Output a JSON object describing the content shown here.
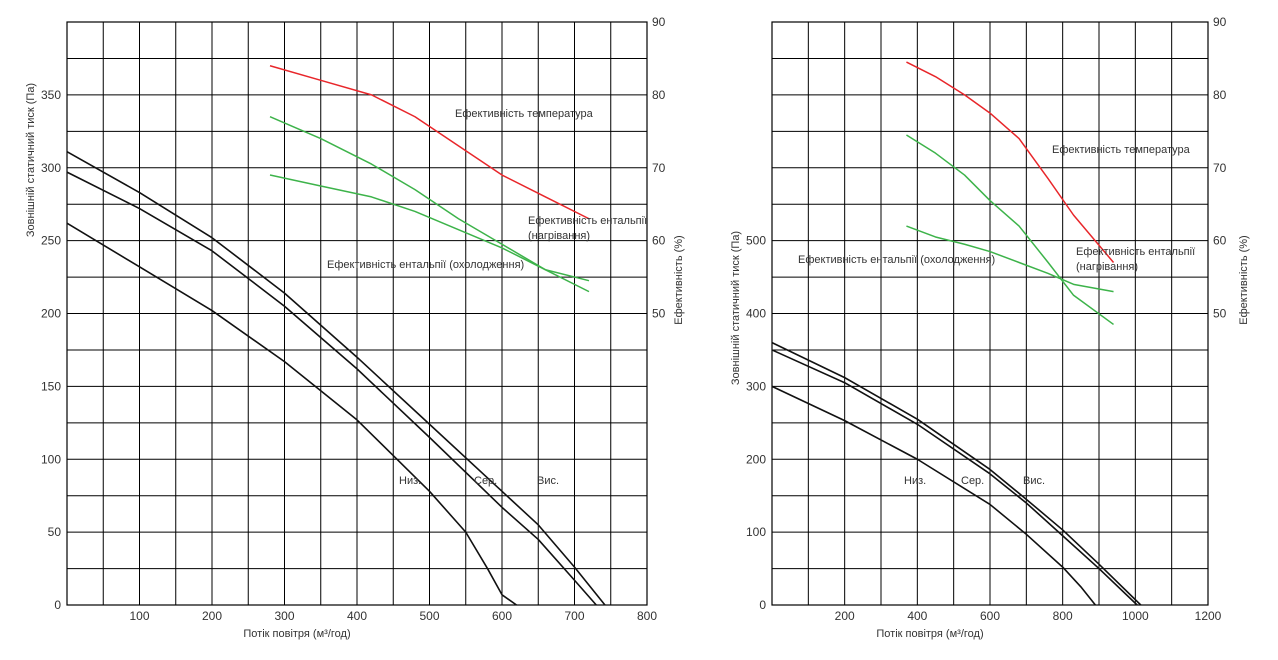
{
  "chart_data": [
    {
      "type": "line",
      "x_label": "Потік повітря (м³/год)",
      "y_left_label": "Зовнішній статичний тиск (Па)",
      "y_right_label": "Ефективність (%)",
      "xlim": [
        0,
        800
      ],
      "ylim_left": [
        0,
        400
      ],
      "ylim_right": [
        10,
        90
      ],
      "x_ticks": [
        "100",
        "200",
        "300",
        "400",
        "500",
        "600",
        "700",
        "800"
      ],
      "y_left_ticks": [
        "0",
        "50",
        "100",
        "150",
        "200",
        "250",
        "300",
        "350"
      ],
      "y_right_ticks": [
        "50",
        "60",
        "70",
        "80",
        "90"
      ],
      "grid": true,
      "pressure_series": [
        {
          "name": "Низ.",
          "x": [
            0,
            100,
            200,
            300,
            400,
            500,
            550,
            580,
            600,
            620
          ],
          "y": [
            262,
            232,
            202,
            167,
            127,
            78,
            50,
            25,
            7,
            0
          ]
        },
        {
          "name": "Сер.",
          "x": [
            0,
            100,
            200,
            300,
            400,
            500,
            600,
            650,
            700,
            730
          ],
          "y": [
            297,
            272,
            243,
            205,
            162,
            115,
            67,
            45,
            17,
            0
          ]
        },
        {
          "name": "Вис.",
          "x": [
            0,
            100,
            200,
            300,
            400,
            500,
            600,
            650,
            700,
            742
          ],
          "y": [
            311,
            283,
            252,
            214,
            170,
            124,
            78,
            55,
            26,
            0
          ]
        }
      ],
      "efficiency_series": [
        {
          "name": "Ефективність температура",
          "color": "#e8262a",
          "x": [
            280,
            350,
            420,
            480,
            540,
            600,
            660,
            720
          ],
          "y": [
            84,
            82,
            80,
            77,
            73,
            69,
            66,
            63
          ]
        },
        {
          "name": "Ефективність ентальпії (нагрівання)",
          "color": "#3db34a",
          "x": [
            280,
            350,
            420,
            480,
            540,
            600,
            660,
            720
          ],
          "y": [
            77,
            74,
            70.5,
            67,
            63,
            59.5,
            56,
            53
          ]
        },
        {
          "name": "Ефективність ентальпії (охолодження)",
          "color": "#3db34a",
          "x": [
            280,
            350,
            420,
            480,
            540,
            600,
            660,
            720
          ],
          "y": [
            69,
            67.5,
            66,
            64,
            61.5,
            59,
            56,
            54.5
          ]
        }
      ],
      "annotations": [
        {
          "text": "Ефективність температура"
        },
        {
          "text": "Ефективність ентальпії"
        },
        {
          "text": "(нагрівання)"
        },
        {
          "text": "Ефективність ентальпії (охолодження)"
        },
        {
          "text": "Низ."
        },
        {
          "text": "Сер."
        },
        {
          "text": "Вис."
        }
      ]
    },
    {
      "type": "line",
      "x_label": "Потік повітря (м³/год)",
      "y_left_label": "Зовнішній статичний тиск (Па)",
      "y_right_label": "Ефективність (%)",
      "xlim": [
        0,
        1200
      ],
      "ylim_left": [
        0,
        800
      ],
      "ylim_right": [
        10,
        90
      ],
      "x_ticks": [
        "200",
        "400",
        "600",
        "800",
        "1000",
        "1200"
      ],
      "y_left_ticks": [
        "0",
        "100",
        "200",
        "300",
        "400",
        "500"
      ],
      "y_right_ticks": [
        "50",
        "60",
        "70",
        "80",
        "90"
      ],
      "grid": true,
      "pressure_series": [
        {
          "name": "Низ.",
          "x": [
            0,
            200,
            400,
            600,
            700,
            800,
            850,
            890
          ],
          "y": [
            300,
            253,
            200,
            138,
            97,
            52,
            25,
            0
          ]
        },
        {
          "name": "Сер.",
          "x": [
            0,
            200,
            400,
            600,
            700,
            800,
            900,
            1005
          ],
          "y": [
            350,
            305,
            248,
            180,
            140,
            95,
            50,
            0
          ]
        },
        {
          "name": "Вис.",
          "x": [
            0,
            200,
            400,
            600,
            700,
            800,
            900,
            1015
          ],
          "y": [
            360,
            312,
            255,
            186,
            145,
            103,
            56,
            0
          ]
        }
      ],
      "efficiency_series": [
        {
          "name": "Ефективність температура",
          "color": "#e8262a",
          "x": [
            370,
            450,
            530,
            600,
            680,
            760,
            830,
            940
          ],
          "y": [
            84.5,
            82.5,
            80,
            77.5,
            74,
            68.5,
            63.5,
            57
          ]
        },
        {
          "name": "Ефективність ентальпії (нагрівання)",
          "color": "#3db34a",
          "x": [
            370,
            450,
            530,
            600,
            680,
            760,
            830,
            940
          ],
          "y": [
            74.5,
            72,
            69,
            65.5,
            62,
            57,
            52.5,
            48.5
          ]
        },
        {
          "name": "Ефективність ентальпії (охолодження)",
          "color": "#3db34a",
          "x": [
            370,
            450,
            530,
            600,
            680,
            760,
            830,
            940
          ],
          "y": [
            62,
            60.5,
            59.5,
            58.5,
            57,
            55.5,
            54,
            53
          ]
        }
      ],
      "annotations": [
        {
          "text": "Ефективність температура"
        },
        {
          "text": "Ефективність ентальпії"
        },
        {
          "text": "(нагрівання)"
        },
        {
          "text": "Ефективність ентальпії (охолодження)"
        },
        {
          "text": "Низ."
        },
        {
          "text": "Сер."
        },
        {
          "text": "Вис."
        }
      ]
    }
  ]
}
